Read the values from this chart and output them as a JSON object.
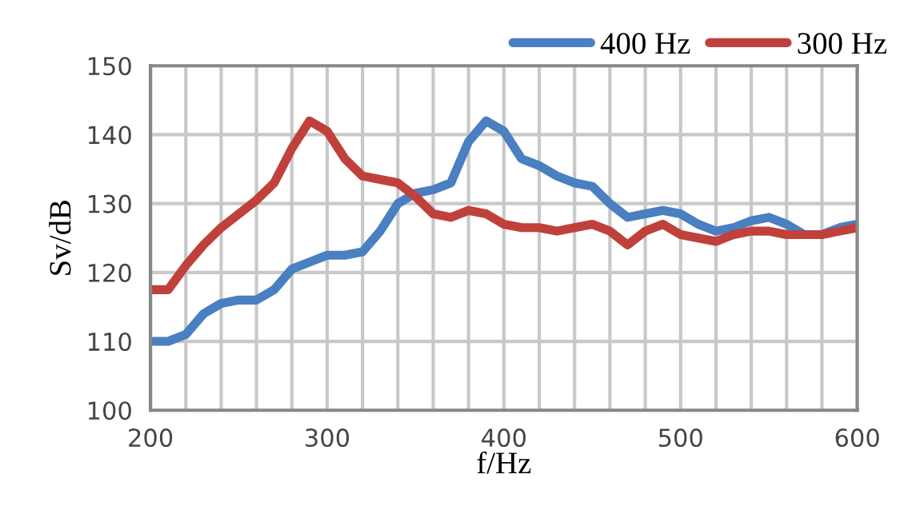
{
  "chart_data": {
    "type": "line",
    "xlabel": "f/Hz",
    "ylabel": "Sv/dB",
    "x": [
      200,
      210,
      220,
      230,
      240,
      250,
      260,
      270,
      280,
      290,
      300,
      310,
      320,
      330,
      340,
      350,
      360,
      370,
      380,
      390,
      400,
      410,
      420,
      430,
      440,
      450,
      460,
      470,
      480,
      490,
      500,
      510,
      520,
      530,
      540,
      550,
      560,
      570,
      580,
      590,
      600
    ],
    "series": [
      {
        "name": "400 Hz",
        "color": "#4a7fc1",
        "values": [
          110,
          110,
          111,
          114,
          115.5,
          116,
          116,
          117.5,
          120.5,
          121.5,
          122.5,
          122.5,
          123,
          126,
          130,
          131.5,
          132,
          133,
          139,
          142,
          140.5,
          136.5,
          135.5,
          134,
          133,
          132.5,
          130,
          128,
          128.5,
          129,
          128.5,
          127,
          126,
          126.5,
          127.5,
          128,
          127,
          125.5,
          125.5,
          126.5,
          127
        ]
      },
      {
        "name": "300 Hz",
        "color": "#c0413b",
        "values": [
          117.5,
          117.5,
          121,
          124,
          126.5,
          128.5,
          130.5,
          133,
          138,
          142,
          140.5,
          136.5,
          134,
          133.5,
          133,
          131,
          128.5,
          128,
          129,
          128.5,
          127,
          126.5,
          126.5,
          126,
          126.5,
          127,
          126,
          124,
          126,
          127,
          125.5,
          125,
          124.5,
          125.5,
          126,
          126,
          125.5,
          125.5,
          125.5,
          126,
          126.5
        ]
      }
    ],
    "xlim": [
      200,
      600
    ],
    "xticks": [
      200,
      {
        "value": 220,
        "label": null
      },
      {
        "value": 240,
        "label": null
      },
      {
        "value": 260,
        "label": null
      },
      {
        "value": 280,
        "label": null
      },
      300,
      {
        "value": 320,
        "label": null
      },
      {
        "value": 340,
        "label": null
      },
      {
        "value": 360,
        "label": null
      },
      {
        "value": 380,
        "label": null
      },
      400,
      {
        "value": 420,
        "label": null
      },
      {
        "value": 440,
        "label": null
      },
      {
        "value": 460,
        "label": null
      },
      {
        "value": 480,
        "label": null
      },
      500,
      {
        "value": 520,
        "label": null
      },
      {
        "value": 540,
        "label": null
      },
      {
        "value": 560,
        "label": null
      },
      {
        "value": 580,
        "label": null
      },
      600
    ],
    "ylim": [
      100,
      150
    ],
    "yticks": [
      100,
      110,
      120,
      130,
      140,
      150
    ],
    "grid": true,
    "legend": "top right",
    "marker": "none",
    "line_style": "solid"
  }
}
